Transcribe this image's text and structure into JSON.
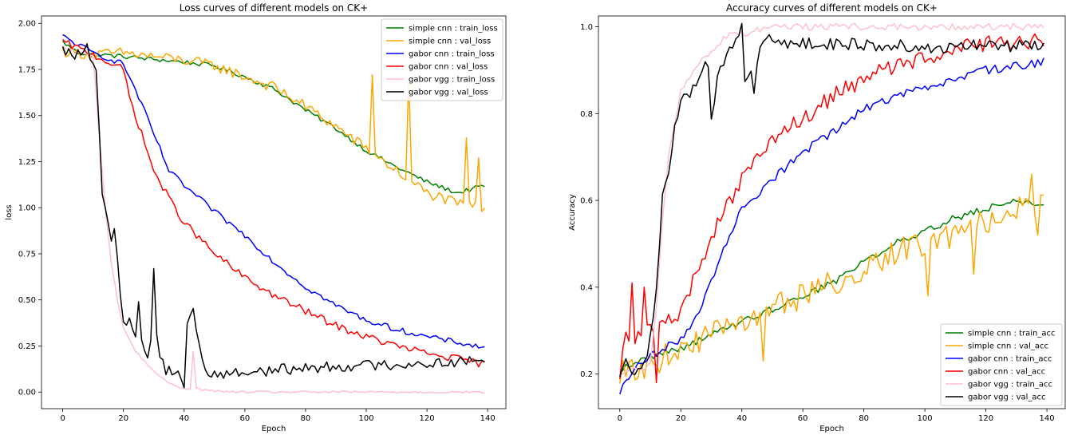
{
  "chart_data": [
    {
      "type": "line",
      "title": "Loss curves of different models on CK+",
      "xlabel": "Epoch",
      "ylabel": "loss",
      "xlim": [
        -7,
        146
      ],
      "ylim": [
        -0.09,
        2.04
      ],
      "xticks": [
        0,
        20,
        40,
        60,
        80,
        100,
        120,
        140
      ],
      "yticks": [
        0.0,
        0.25,
        0.5,
        0.75,
        1.0,
        1.25,
        1.5,
        1.75,
        2.0
      ],
      "ytick_labels": [
        "0.00",
        "0.25",
        "0.50",
        "0.75",
        "1.00",
        "1.25",
        "1.50",
        "1.75",
        "2.00"
      ],
      "legend_position": "top-right",
      "grid": false,
      "series": [
        {
          "name": "simple cnn : train_loss",
          "color": "#008000",
          "noise": 0.012,
          "anchors": [
            [
              0,
              1.9
            ],
            [
              5,
              1.84
            ],
            [
              20,
              1.82
            ],
            [
              40,
              1.79
            ],
            [
              50,
              1.77
            ],
            [
              60,
              1.71
            ],
            [
              70,
              1.64
            ],
            [
              80,
              1.53
            ],
            [
              90,
              1.43
            ],
            [
              100,
              1.31
            ],
            [
              110,
              1.22
            ],
            [
              120,
              1.14
            ],
            [
              130,
              1.08
            ],
            [
              139,
              1.12
            ]
          ]
        },
        {
          "name": "simple cnn : val_loss",
          "color": "#ffa500",
          "noise": 0.03,
          "anchors": [
            [
              0,
              1.85
            ],
            [
              10,
              1.83
            ],
            [
              20,
              1.84
            ],
            [
              40,
              1.8
            ],
            [
              50,
              1.77
            ],
            [
              60,
              1.71
            ],
            [
              70,
              1.65
            ],
            [
              80,
              1.55
            ],
            [
              90,
              1.44
            ],
            [
              100,
              1.32
            ],
            [
              110,
              1.2
            ],
            [
              120,
              1.08
            ],
            [
              130,
              1.02
            ],
            [
              139,
              1.0
            ]
          ],
          "spikes": [
            [
              102,
              1.72
            ],
            [
              114,
              1.7
            ],
            [
              133,
              1.38
            ],
            [
              137,
              1.27
            ]
          ]
        },
        {
          "name": "gabor cnn : train_loss",
          "color": "#0000ff",
          "noise": 0.015,
          "anchors": [
            [
              0,
              1.93
            ],
            [
              10,
              1.84
            ],
            [
              20,
              1.78
            ],
            [
              25,
              1.6
            ],
            [
              30,
              1.4
            ],
            [
              35,
              1.2
            ],
            [
              40,
              1.12
            ],
            [
              50,
              0.98
            ],
            [
              60,
              0.85
            ],
            [
              70,
              0.7
            ],
            [
              80,
              0.57
            ],
            [
              90,
              0.47
            ],
            [
              100,
              0.39
            ],
            [
              110,
              0.34
            ],
            [
              120,
              0.3
            ],
            [
              130,
              0.27
            ],
            [
              139,
              0.24
            ]
          ]
        },
        {
          "name": "gabor cnn : val_loss",
          "color": "#ff0000",
          "noise": 0.02,
          "anchors": [
            [
              0,
              1.9
            ],
            [
              10,
              1.83
            ],
            [
              20,
              1.75
            ],
            [
              22,
              1.6
            ],
            [
              25,
              1.45
            ],
            [
              30,
              1.2
            ],
            [
              35,
              1.05
            ],
            [
              40,
              0.92
            ],
            [
              50,
              0.75
            ],
            [
              60,
              0.62
            ],
            [
              70,
              0.52
            ],
            [
              80,
              0.44
            ],
            [
              90,
              0.36
            ],
            [
              100,
              0.3
            ],
            [
              110,
              0.25
            ],
            [
              120,
              0.21
            ],
            [
              130,
              0.18
            ],
            [
              139,
              0.15
            ]
          ]
        },
        {
          "name": "gabor vgg : train_loss",
          "color": "#ffc0cb",
          "noise": 0.006,
          "anchors": [
            [
              0,
              1.87
            ],
            [
              10,
              1.82
            ],
            [
              12,
              1.4
            ],
            [
              14,
              1.0
            ],
            [
              16,
              0.7
            ],
            [
              18,
              0.5
            ],
            [
              20,
              0.35
            ],
            [
              24,
              0.22
            ],
            [
              28,
              0.15
            ],
            [
              32,
              0.08
            ],
            [
              36,
              0.04
            ],
            [
              40,
              0.02
            ],
            [
              44,
              0.02
            ],
            [
              47,
              0.01
            ],
            [
              55,
              0.0
            ],
            [
              139,
              0.0
            ]
          ],
          "spikes": [
            [
              43,
              0.22
            ]
          ]
        },
        {
          "name": "gabor vgg : val_loss",
          "color": "#000000",
          "noise": 0.03,
          "anchors": [
            [
              0,
              1.85
            ],
            [
              5,
              1.83
            ],
            [
              8,
              1.86
            ],
            [
              11,
              1.72
            ],
            [
              13,
              1.1
            ],
            [
              15,
              0.9
            ],
            [
              16,
              0.79
            ],
            [
              17,
              0.89
            ],
            [
              19,
              0.55
            ],
            [
              20,
              0.38
            ],
            [
              22,
              0.4
            ],
            [
              24,
              0.28
            ],
            [
              26,
              0.3
            ],
            [
              28,
              0.18
            ],
            [
              30,
              0.4
            ],
            [
              32,
              0.2
            ],
            [
              34,
              0.12
            ],
            [
              38,
              0.12
            ],
            [
              40,
              0.03
            ],
            [
              41,
              0.38
            ],
            [
              43,
              0.45
            ],
            [
              45,
              0.25
            ],
            [
              47,
              0.1
            ],
            [
              55,
              0.1
            ],
            [
              70,
              0.12
            ],
            [
              90,
              0.14
            ],
            [
              110,
              0.15
            ],
            [
              125,
              0.16
            ],
            [
              139,
              0.17
            ]
          ],
          "spikes": [
            [
              30,
              0.67
            ],
            [
              25,
              0.49
            ]
          ]
        }
      ]
    },
    {
      "type": "line",
      "title": "Accuracy curves of different models on CK+",
      "xlabel": "Epoch",
      "ylabel": "Accuracy",
      "xlim": [
        -7,
        146
      ],
      "ylim": [
        0.12,
        1.025
      ],
      "xticks": [
        0,
        20,
        40,
        60,
        80,
        100,
        120,
        140
      ],
      "yticks": [
        0.2,
        0.4,
        0.6,
        0.8,
        1.0
      ],
      "ytick_labels": [
        "0.2",
        "0.4",
        "0.6",
        "0.8",
        "1.0"
      ],
      "legend_position": "bottom-right",
      "grid": false,
      "series": [
        {
          "name": "simple cnn : train_acc",
          "color": "#008000",
          "noise": 0.008,
          "anchors": [
            [
              0,
              0.21
            ],
            [
              10,
              0.24
            ],
            [
              20,
              0.26
            ],
            [
              30,
              0.29
            ],
            [
              40,
              0.32
            ],
            [
              50,
              0.35
            ],
            [
              60,
              0.38
            ],
            [
              70,
              0.41
            ],
            [
              80,
              0.46
            ],
            [
              90,
              0.5
            ],
            [
              100,
              0.53
            ],
            [
              110,
              0.56
            ],
            [
              120,
              0.58
            ],
            [
              130,
              0.6
            ],
            [
              139,
              0.59
            ]
          ]
        },
        {
          "name": "simple cnn : val_acc",
          "color": "#ffa500",
          "noise": 0.03,
          "anchors": [
            [
              0,
              0.2
            ],
            [
              10,
              0.22
            ],
            [
              20,
              0.26
            ],
            [
              30,
              0.29
            ],
            [
              40,
              0.32
            ],
            [
              50,
              0.35
            ],
            [
              60,
              0.38
            ],
            [
              70,
              0.41
            ],
            [
              80,
              0.44
            ],
            [
              90,
              0.48
            ],
            [
              100,
              0.5
            ],
            [
              110,
              0.52
            ],
            [
              120,
              0.55
            ],
            [
              130,
              0.58
            ],
            [
              139,
              0.6
            ]
          ],
          "spikes": [
            [
              47,
              0.23
            ],
            [
              101,
              0.38
            ],
            [
              116,
              0.43
            ],
            [
              135,
              0.66
            ],
            [
              137,
              0.52
            ]
          ]
        },
        {
          "name": "gabor cnn : train_acc",
          "color": "#0000ff",
          "noise": 0.01,
          "anchors": [
            [
              0,
              0.16
            ],
            [
              5,
              0.21
            ],
            [
              10,
              0.24
            ],
            [
              20,
              0.28
            ],
            [
              25,
              0.33
            ],
            [
              30,
              0.42
            ],
            [
              35,
              0.5
            ],
            [
              40,
              0.58
            ],
            [
              50,
              0.65
            ],
            [
              60,
              0.71
            ],
            [
              70,
              0.76
            ],
            [
              80,
              0.81
            ],
            [
              90,
              0.84
            ],
            [
              100,
              0.86
            ],
            [
              110,
              0.88
            ],
            [
              120,
              0.9
            ],
            [
              130,
              0.91
            ],
            [
              139,
              0.92
            ]
          ]
        },
        {
          "name": "gabor cnn : val_acc",
          "color": "#ff0000",
          "noise": 0.02,
          "anchors": [
            [
              0,
              0.2
            ],
            [
              2,
              0.31
            ],
            [
              4,
              0.28
            ],
            [
              10,
              0.3
            ],
            [
              20,
              0.34
            ],
            [
              30,
              0.52
            ],
            [
              40,
              0.65
            ],
            [
              50,
              0.73
            ],
            [
              60,
              0.79
            ],
            [
              70,
              0.84
            ],
            [
              80,
              0.88
            ],
            [
              90,
              0.91
            ],
            [
              100,
              0.93
            ],
            [
              110,
              0.95
            ],
            [
              120,
              0.96
            ],
            [
              130,
              0.96
            ],
            [
              139,
              0.97
            ]
          ],
          "spikes": [
            [
              4,
              0.41
            ],
            [
              8,
              0.4
            ],
            [
              12,
              0.18
            ]
          ]
        },
        {
          "name": "gabor vgg : train_acc",
          "color": "#ffc0cb",
          "noise": 0.008,
          "anchors": [
            [
              0,
              0.2
            ],
            [
              5,
              0.21
            ],
            [
              10,
              0.22
            ],
            [
              12,
              0.35
            ],
            [
              14,
              0.55
            ],
            [
              16,
              0.7
            ],
            [
              18,
              0.78
            ],
            [
              20,
              0.85
            ],
            [
              24,
              0.9
            ],
            [
              28,
              0.93
            ],
            [
              32,
              0.96
            ],
            [
              36,
              0.98
            ],
            [
              40,
              0.985
            ],
            [
              44,
              0.99
            ],
            [
              48,
              1.0
            ],
            [
              139,
              1.0
            ]
          ]
        },
        {
          "name": "gabor vgg : val_acc",
          "color": "#000000",
          "noise": 0.015,
          "anchors": [
            [
              0,
              0.2
            ],
            [
              2,
              0.25
            ],
            [
              4,
              0.2
            ],
            [
              8,
              0.23
            ],
            [
              10,
              0.28
            ],
            [
              12,
              0.4
            ],
            [
              14,
              0.6
            ],
            [
              16,
              0.66
            ],
            [
              18,
              0.78
            ],
            [
              20,
              0.82
            ],
            [
              24,
              0.86
            ],
            [
              26,
              0.88
            ],
            [
              28,
              0.93
            ],
            [
              29,
              0.92
            ],
            [
              30,
              0.79
            ],
            [
              32,
              0.88
            ],
            [
              36,
              0.94
            ],
            [
              38,
              0.96
            ],
            [
              40,
              0.995
            ],
            [
              41,
              0.88
            ],
            [
              43,
              0.9
            ],
            [
              44,
              0.86
            ],
            [
              46,
              0.95
            ],
            [
              48,
              0.98
            ],
            [
              55,
              0.96
            ],
            [
              70,
              0.96
            ],
            [
              90,
              0.955
            ],
            [
              110,
              0.955
            ],
            [
              125,
              0.955
            ],
            [
              139,
              0.96
            ]
          ]
        }
      ]
    }
  ]
}
